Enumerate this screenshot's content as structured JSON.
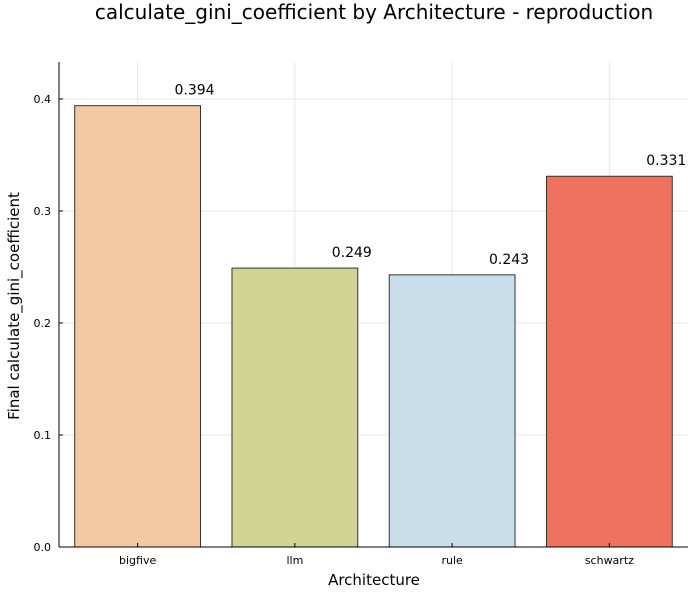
{
  "chart_data": {
    "type": "bar",
    "title": "calculate_gini_coefficient by Architecture - reproduction",
    "xlabel": "Architecture",
    "ylabel": "Final calculate_gini_coefficient",
    "categories": [
      "bigfive",
      "llm",
      "rule",
      "schwartz"
    ],
    "values": [
      0.394,
      0.249,
      0.243,
      0.331
    ],
    "value_labels": [
      "0.394",
      "0.249",
      "0.243",
      "0.331"
    ],
    "colors": [
      "#f4c8a3",
      "#d0d596",
      "#c9ddeb",
      "#ef7260"
    ],
    "ylim": [
      0,
      0.433
    ],
    "yticks": [
      0.0,
      0.1,
      0.2,
      0.3,
      0.4
    ],
    "ytick_labels": [
      "0.0",
      "0.1",
      "0.2",
      "0.3",
      "0.4"
    ],
    "grid": true,
    "legend": "none"
  }
}
